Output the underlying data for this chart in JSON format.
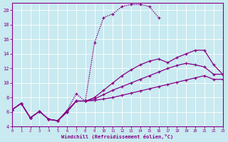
{
  "xlabel": "Windchill (Refroidissement éolien,°C)",
  "bg_color": "#c8eaf0",
  "line_color": "#880088",
  "xlim": [
    0,
    23
  ],
  "ylim": [
    4,
    21
  ],
  "yticks": [
    4,
    6,
    8,
    10,
    12,
    14,
    16,
    18,
    20
  ],
  "xticks": [
    0,
    1,
    2,
    3,
    4,
    5,
    6,
    7,
    8,
    9,
    10,
    11,
    12,
    13,
    14,
    15,
    16,
    17,
    18,
    19,
    20,
    21,
    22,
    23
  ],
  "series": [
    {
      "x": [
        0,
        1,
        2,
        3,
        4,
        5,
        6,
        7,
        8,
        9,
        10,
        11,
        12,
        13,
        14,
        15,
        16,
        17,
        18,
        19,
        20,
        21,
        22,
        23
      ],
      "y": [
        6.3,
        7.2,
        5.2,
        6.1,
        5.0,
        4.8,
        6.0,
        7.5,
        7.5,
        7.6,
        7.8,
        8.0,
        8.3,
        8.6,
        8.9,
        9.2,
        9.5,
        9.8,
        10.1,
        10.4,
        10.7,
        11.0,
        10.5,
        10.5
      ],
      "style": "solid"
    },
    {
      "x": [
        0,
        1,
        2,
        3,
        4,
        5,
        6,
        7,
        8,
        9,
        10,
        11,
        12,
        13,
        14,
        15,
        16,
        17,
        18,
        19,
        20,
        21,
        22,
        23
      ],
      "y": [
        6.3,
        7.2,
        5.2,
        6.1,
        5.0,
        4.8,
        6.0,
        7.5,
        7.5,
        7.8,
        8.4,
        9.0,
        9.5,
        10.0,
        10.5,
        11.0,
        11.5,
        12.0,
        12.4,
        12.7,
        12.5,
        12.2,
        11.2,
        11.2
      ],
      "style": "solid"
    },
    {
      "x": [
        0,
        1,
        2,
        3,
        4,
        5,
        6,
        7,
        8,
        9,
        10,
        11,
        12,
        13,
        14,
        15,
        16,
        17,
        18,
        19,
        20,
        21,
        22,
        23
      ],
      "y": [
        6.3,
        7.2,
        5.2,
        6.1,
        5.0,
        4.8,
        6.2,
        7.5,
        7.5,
        8.0,
        9.0,
        10.0,
        11.0,
        11.8,
        12.5,
        13.0,
        13.3,
        12.8,
        13.5,
        14.0,
        14.5,
        14.5,
        12.5,
        11.2
      ],
      "style": "solid"
    },
    {
      "x": [
        0,
        1,
        2,
        3,
        4,
        5,
        6,
        7,
        8,
        9,
        10,
        11,
        12,
        13,
        14,
        15,
        16
      ],
      "y": [
        6.3,
        7.2,
        5.2,
        6.1,
        5.0,
        4.8,
        6.2,
        8.5,
        7.5,
        15.5,
        19.0,
        19.5,
        20.5,
        20.8,
        20.8,
        20.5,
        19.0
      ],
      "style": "dotted"
    }
  ]
}
